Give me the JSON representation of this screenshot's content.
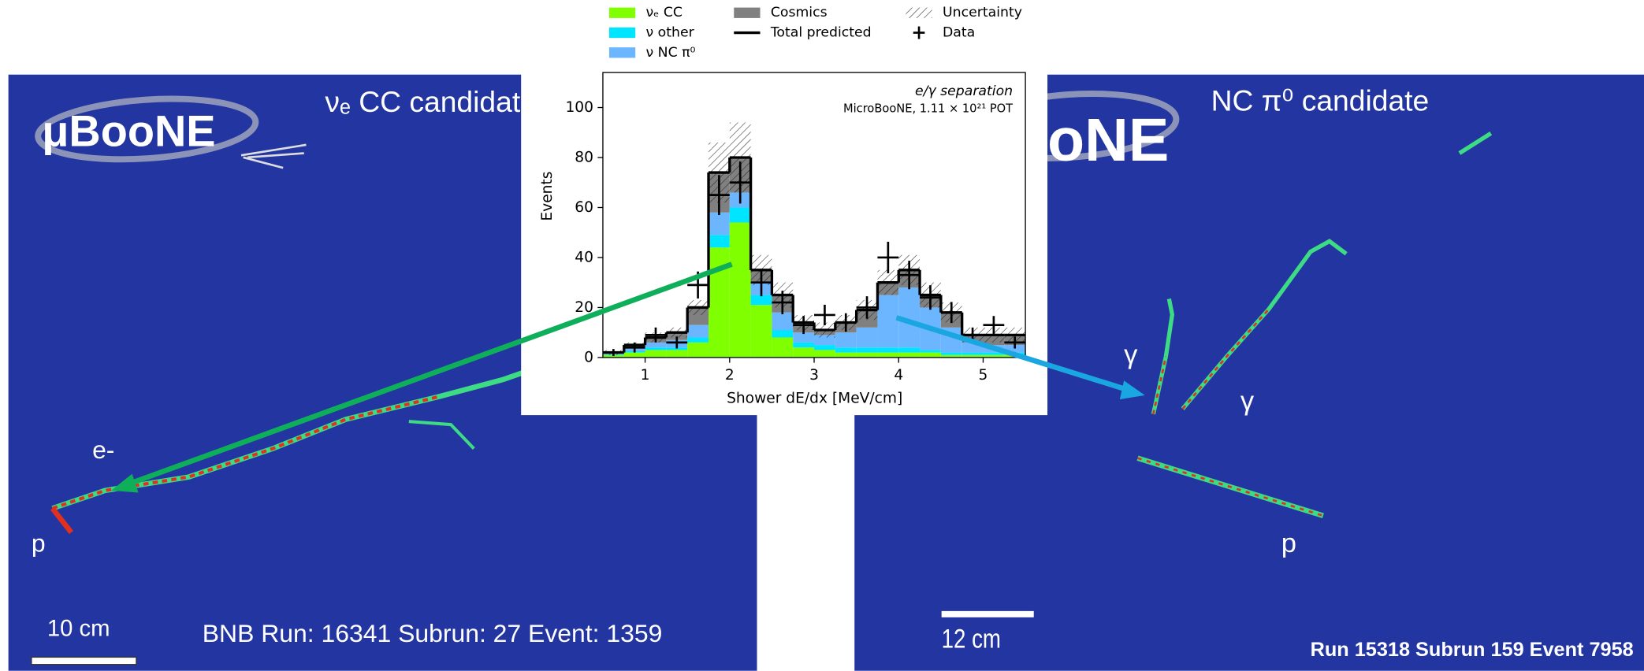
{
  "chart_data": {
    "type": "histogram",
    "series": [
      {
        "name": "νₑ CC",
        "color": "#80ff00",
        "values": [
          1,
          2,
          3,
          3,
          6,
          44,
          54,
          21,
          8,
          4,
          3,
          2,
          2,
          2,
          2,
          2,
          1,
          1,
          1,
          1
        ]
      },
      {
        "name": "ν other",
        "color": "#00e5ff",
        "values": [
          0.3,
          0.5,
          1,
          1,
          2,
          5,
          6,
          4,
          3,
          2,
          2,
          2,
          2,
          2,
          2,
          1,
          1,
          1,
          1,
          1
        ]
      },
      {
        "name": "ν NC π⁰",
        "color": "#6cb6ff",
        "values": [
          0.5,
          1,
          2,
          3,
          5,
          9,
          6,
          5,
          7,
          4,
          4,
          6,
          8,
          21,
          24,
          17,
          10,
          4,
          3,
          3
        ]
      },
      {
        "name": "Cosmics",
        "color": "#808080",
        "values": [
          0.2,
          1.5,
          2,
          3,
          7,
          16,
          14,
          5,
          7,
          4,
          2,
          4,
          7,
          5,
          7,
          5,
          6,
          3,
          4,
          4
        ]
      }
    ],
    "total_predicted": {
      "name": "Total predicted",
      "color": "#000000"
    },
    "uncertainty": {
      "name": "Uncertainty",
      "values": [
        1,
        1,
        2,
        2,
        3,
        12,
        14,
        6,
        5,
        3,
        3,
        3,
        4,
        5,
        6,
        5,
        4,
        3,
        3,
        3
      ]
    },
    "data": {
      "name": "Data",
      "values": [
        2,
        4,
        9,
        6,
        29,
        65,
        70,
        30,
        22,
        13,
        17,
        14,
        20,
        40,
        33,
        24,
        18,
        9,
        13,
        6
      ],
      "errors": [
        1.4,
        2,
        3,
        2.4,
        5.4,
        8,
        8.4,
        5.5,
        4.7,
        3.6,
        4.1,
        3.7,
        4.5,
        6.3,
        5.7,
        4.9,
        4.2,
        3,
        3.6,
        2.4
      ]
    },
    "bins": [
      0.5,
      0.75,
      1,
      1.25,
      1.5,
      1.75,
      2,
      2.25,
      2.5,
      2.75,
      3,
      3.25,
      3.5,
      3.75,
      4,
      4.25,
      4.5,
      4.75,
      5,
      5.25,
      5.5
    ],
    "xlim": [
      0.5,
      5.5
    ],
    "xticks": [
      1,
      2,
      3,
      4,
      5
    ],
    "ylim": [
      0,
      114
    ],
    "yticks": [
      0,
      20,
      40,
      60,
      80,
      100
    ],
    "xlabel": "Shower dE/dx [MeV/cm]",
    "ylabel": "Events",
    "annotations": [
      "e/γ separation",
      "MicroBooNE, 1.11 × 10²¹ POT"
    ]
  },
  "left_panel": {
    "logo": "μBooNE",
    "title": "νₑ CC candidate",
    "labels": [
      "e-",
      "p"
    ],
    "scale": "10 cm",
    "event": "BNB Run: 16341 Subrun: 27 Event: 1359"
  },
  "right_panel": {
    "logo": "μBooNE",
    "title": "NC π⁰ candidate",
    "labels": [
      "γ",
      "γ",
      "p"
    ],
    "scale": "12 cm",
    "event": "Run 15318 Subrun 159 Event 7958"
  }
}
